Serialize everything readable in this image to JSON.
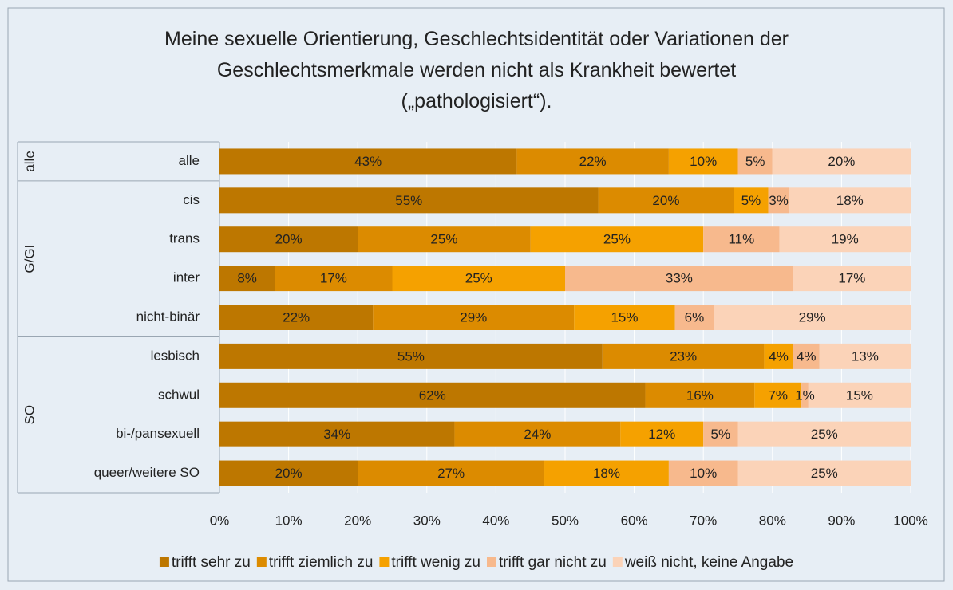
{
  "chart_data": {
    "type": "stacked-bar-horizontal",
    "title": "Meine sexuelle Orientierung, Geschlechtsidentität oder Variationen der\nGeschlechtsmerkmale werden nicht als Krankheit bewertet\n(„pathologisiert“).",
    "groups": [
      {
        "name": "alle",
        "categories": [
          "alle"
        ]
      },
      {
        "name": "G/GI",
        "categories": [
          "cis",
          "trans",
          "inter",
          "nicht-binär"
        ]
      },
      {
        "name": "SO",
        "categories": [
          "lesbisch",
          "schwul",
          "bi-/pansexuell",
          "queer/weitere SO"
        ]
      }
    ],
    "series": [
      {
        "name": "trifft sehr zu",
        "color": "#bd7700",
        "values": [
          43,
          54.8,
          20,
          8,
          22.2,
          55.4,
          61.6,
          34,
          20
        ],
        "value_labels": [
          "43%",
          "55%",
          "20%",
          "8%",
          "22%",
          "55%",
          "62%",
          "34%",
          "20%"
        ]
      },
      {
        "name": "trifft ziemlich zu",
        "color": "#dc8b00",
        "values": [
          22,
          19.6,
          25,
          17,
          29.1,
          23.4,
          15.8,
          24,
          27
        ],
        "value_labels": [
          "22%",
          "20%",
          "25%",
          "17%",
          "29%",
          "23%",
          "16%",
          "24%",
          "27%"
        ]
      },
      {
        "name": "trifft wenig zu",
        "color": "#f5a100",
        "values": [
          10,
          5,
          25,
          25,
          14.6,
          4.2,
          6.8,
          12,
          18
        ],
        "value_labels": [
          "10%",
          "5%",
          "25%",
          "25%",
          "15%",
          "4%",
          "7%",
          "12%",
          "18%"
        ]
      },
      {
        "name": "trifft gar nicht zu",
        "color": "#f7b98d",
        "values": [
          5,
          3,
          11,
          33,
          5.6,
          3.8,
          1,
          5,
          10
        ],
        "value_labels": [
          "5%",
          "3%",
          "11%",
          "33%",
          "6%",
          "4%",
          "1%",
          "5%",
          "10%"
        ]
      },
      {
        "name": "weiß nicht, keine Angabe",
        "color": "#fbd3b8",
        "values": [
          20,
          17.6,
          19,
          17,
          28.5,
          13.2,
          14.8,
          25,
          25
        ],
        "value_labels": [
          "20%",
          "18%",
          "19%",
          "17%",
          "29%",
          "13%",
          "15%",
          "25%",
          "25%"
        ]
      }
    ],
    "xlim": [
      0,
      100
    ],
    "xticks": [
      {
        "value": 0,
        "label": "0%"
      },
      {
        "value": 10,
        "label": "10%"
      },
      {
        "value": 20,
        "label": "20%"
      },
      {
        "value": 30,
        "label": "30%"
      },
      {
        "value": 40,
        "label": "40%"
      },
      {
        "value": 50,
        "label": "50%"
      },
      {
        "value": 60,
        "label": "60%"
      },
      {
        "value": 70,
        "label": "70%"
      },
      {
        "value": 80,
        "label": "80%"
      },
      {
        "value": 90,
        "label": "90%"
      },
      {
        "value": 100,
        "label": "100%"
      }
    ],
    "grid": true,
    "legend": "bottom"
  }
}
